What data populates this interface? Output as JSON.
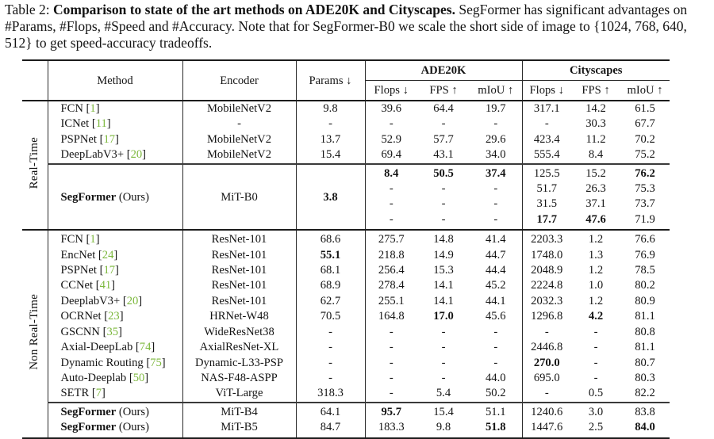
{
  "caption": {
    "prefix": "Table 2: ",
    "bold": "Comparison to state of the art methods on ADE20K and Cityscapes.",
    "rest": " SegFormer has significant advantages on #Params, #Flops, #Speed and #Accuracy. Note that for SegFormer-B0 we scale the short side of image to {1024, 768, 640, 512} to get speed-accuracy tradeoffs."
  },
  "colors": {
    "citation_green": "#7cb83d",
    "text": "#141414",
    "rule": "#1c1c1c"
  },
  "table": {
    "header": {
      "method": "Method",
      "encoder": "Encoder",
      "params": "Params ↓",
      "groups": [
        {
          "label": "ADE20K",
          "cols": [
            "Flops ↓",
            "FPS ↑",
            "mIoU ↑"
          ]
        },
        {
          "label": "Cityscapes",
          "cols": [
            "Flops ↓",
            "FPS ↑",
            "mIoU ↑"
          ]
        }
      ]
    },
    "sections": [
      {
        "label": "Real-Time",
        "blocks": [
          {
            "type": "rows",
            "rows": [
              {
                "method": "FCN",
                "cite": "1",
                "encoder": "MobileNetV2",
                "params": "9.8",
                "cells": [
                  "39.6",
                  "64.4",
                  "19.7",
                  "317.1",
                  "14.2",
                  "61.5"
                ]
              },
              {
                "method": "ICNet",
                "cite": "11",
                "encoder": "-",
                "params": "-",
                "cells": [
                  "-",
                  "-",
                  "-",
                  "-",
                  "30.3",
                  "67.7"
                ]
              },
              {
                "method": "PSPNet",
                "cite": "17",
                "encoder": "MobileNetV2",
                "params": "13.7",
                "cells": [
                  "52.9",
                  "57.7",
                  "29.6",
                  "423.4",
                  "11.2",
                  "70.2"
                ]
              },
              {
                "method": "DeepLabV3+",
                "cite": "20",
                "encoder": "MobileNetV2",
                "params": "15.4",
                "cells": [
                  "69.4",
                  "43.1",
                  "34.0",
                  "555.4",
                  "8.4",
                  "75.2"
                ]
              }
            ]
          },
          {
            "type": "merged",
            "method": "SegFormer",
            "ours": "(Ours)",
            "bold_method": true,
            "encoder": "MiT-B0",
            "params": "**3.8",
            "rows": [
              {
                "cells": [
                  "**8.4",
                  "**50.5",
                  "**37.4",
                  "125.5",
                  "15.2",
                  "**76.2"
                ]
              },
              {
                "cells": [
                  "-",
                  "-",
                  "-",
                  "51.7",
                  "26.3",
                  "75.3"
                ]
              },
              {
                "cells": [
                  "-",
                  "-",
                  "-",
                  "31.5",
                  "37.1",
                  "73.7"
                ]
              },
              {
                "cells": [
                  "-",
                  "-",
                  "-",
                  "**17.7",
                  "**47.6",
                  "71.9"
                ]
              }
            ]
          }
        ]
      },
      {
        "label": "Non Real-Time",
        "blocks": [
          {
            "type": "rows",
            "rows": [
              {
                "method": "FCN",
                "cite": "1",
                "encoder": "ResNet-101",
                "params": "68.6",
                "cells": [
                  "275.7",
                  "14.8",
                  "41.4",
                  "2203.3",
                  "1.2",
                  "76.6"
                ]
              },
              {
                "method": "EncNet",
                "cite": "24",
                "encoder": "ResNet-101",
                "params": "**55.1",
                "cells": [
                  "218.8",
                  "14.9",
                  "44.7",
                  "1748.0",
                  "1.3",
                  "76.9"
                ]
              },
              {
                "method": "PSPNet",
                "cite": "17",
                "encoder": "ResNet-101",
                "params": "68.1",
                "cells": [
                  "256.4",
                  "15.3",
                  "44.4",
                  "2048.9",
                  "1.2",
                  "78.5"
                ]
              },
              {
                "method": "CCNet",
                "cite": "41",
                "encoder": "ResNet-101",
                "params": "68.9",
                "cells": [
                  "278.4",
                  "14.1",
                  "45.2",
                  "2224.8",
                  "1.0",
                  "80.2"
                ]
              },
              {
                "method": "DeeplabV3+",
                "cite": "20",
                "encoder": "ResNet-101",
                "params": "62.7",
                "cells": [
                  "255.1",
                  "14.1",
                  "44.1",
                  "2032.3",
                  "1.2",
                  "80.9"
                ]
              },
              {
                "method": "OCRNet",
                "cite": "23",
                "encoder": "HRNet-W48",
                "params": "70.5",
                "cells": [
                  "164.8",
                  "**17.0",
                  "45.6",
                  "1296.8",
                  "**4.2",
                  "81.1"
                ]
              },
              {
                "method": "GSCNN",
                "cite": "35",
                "encoder": "WideResNet38",
                "params": "-",
                "cells": [
                  "-",
                  "-",
                  "-",
                  "-",
                  "-",
                  "80.8"
                ]
              },
              {
                "method": "Axial-DeepLab",
                "cite": "74",
                "encoder": "AxialResNet-XL",
                "params": "-",
                "cells": [
                  "-",
                  "-",
                  "-",
                  "2446.8",
                  "-",
                  "81.1"
                ]
              },
              {
                "method": "Dynamic Routing",
                "cite": "75",
                "encoder": "Dynamic-L33-PSP",
                "params": "-",
                "cells": [
                  "-",
                  "-",
                  "-",
                  "**270.0",
                  "-",
                  "80.7"
                ]
              },
              {
                "method": "Auto-Deeplab",
                "cite": "50",
                "encoder": "NAS-F48-ASPP",
                "params": "-",
                "cells": [
                  "-",
                  "-",
                  "44.0",
                  "695.0",
                  "-",
                  "80.3"
                ]
              },
              {
                "method": "SETR",
                "cite": "7",
                "encoder": "ViT-Large",
                "params": "318.3",
                "cells": [
                  "-",
                  "5.4",
                  "50.2",
                  "-",
                  "0.5",
                  "82.2"
                ]
              }
            ]
          },
          {
            "type": "rows",
            "rows": [
              {
                "method": "SegFormer",
                "ours": "(Ours)",
                "bold_method": true,
                "encoder": "MiT-B4",
                "params": "64.1",
                "cells": [
                  "**95.7",
                  "15.4",
                  "51.1",
                  "1240.6",
                  "3.0",
                  "83.8"
                ]
              },
              {
                "method": "SegFormer",
                "ours": "(Ours)",
                "bold_method": true,
                "encoder": "MiT-B5",
                "params": "84.7",
                "cells": [
                  "183.3",
                  "9.8",
                  "**51.8",
                  "1447.6",
                  "2.5",
                  "**84.0"
                ]
              }
            ]
          }
        ]
      }
    ]
  }
}
